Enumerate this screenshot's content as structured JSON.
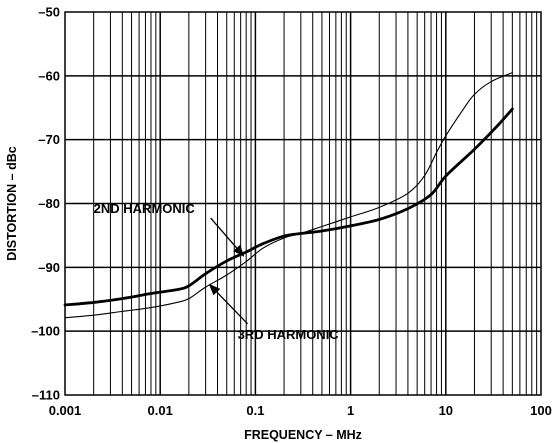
{
  "chart_data": {
    "type": "line",
    "title": "",
    "xlabel": "FREQUENCY – MHz",
    "ylabel": "DISTORTION – dBc",
    "x_scale": "log",
    "xlim": [
      0.001,
      100
    ],
    "ylim": [
      -110,
      -50
    ],
    "grid": true,
    "x_tick_labels": [
      "0.001",
      "0.01",
      "0.1",
      "1",
      "10",
      "100"
    ],
    "y_tick_labels": [
      "–110",
      "–100",
      "–90",
      "–80",
      "–70",
      "–60",
      "–50"
    ],
    "series": [
      {
        "name": "2ND HARMONIC",
        "line_weight": "thick",
        "x": [
          0.001,
          0.002,
          0.004,
          0.008,
          0.015,
          0.02,
          0.03,
          0.05,
          0.08,
          0.12,
          0.2,
          0.3,
          0.5,
          1,
          2,
          4,
          7,
          10,
          20,
          35,
          50
        ],
        "y": [
          -95.9,
          -95.5,
          -94.9,
          -94.1,
          -93.5,
          -92.9,
          -91.0,
          -89.0,
          -87.6,
          -86.3,
          -85.1,
          -84.7,
          -84.3,
          -83.5,
          -82.5,
          -80.8,
          -78.6,
          -75.7,
          -71.5,
          -67.8,
          -65.2
        ]
      },
      {
        "name": "3RD HARMONIC",
        "line_weight": "thin",
        "x": [
          0.001,
          0.002,
          0.004,
          0.008,
          0.015,
          0.02,
          0.03,
          0.05,
          0.08,
          0.12,
          0.2,
          0.3,
          0.5,
          1,
          2,
          4,
          6,
          8,
          10,
          15,
          20,
          30,
          50
        ],
        "y": [
          -97.9,
          -97.5,
          -96.9,
          -96.3,
          -95.5,
          -94.9,
          -93.1,
          -91.2,
          -89.1,
          -87.0,
          -85.4,
          -84.7,
          -83.6,
          -82.1,
          -80.6,
          -78.4,
          -75.6,
          -72.0,
          -69.4,
          -65.4,
          -62.9,
          -60.9,
          -59.5
        ]
      }
    ],
    "annotations": [
      {
        "text": "2ND HARMONIC",
        "x": 0.002,
        "y": -81.5,
        "points_to": [
          0.075,
          -88.2
        ]
      },
      {
        "text": "3RD HARMONIC",
        "x": 0.065,
        "y": -101.2,
        "points_to": [
          0.033,
          -92.7
        ]
      }
    ]
  }
}
